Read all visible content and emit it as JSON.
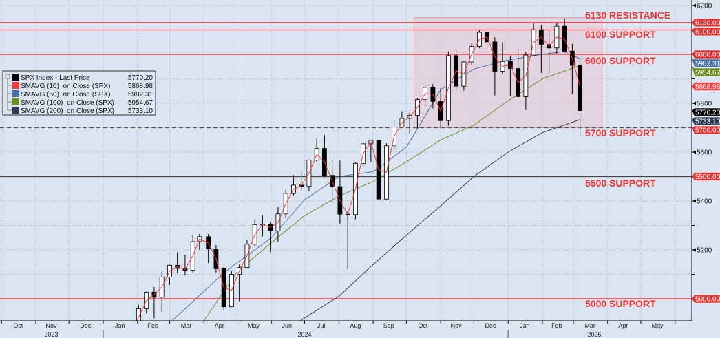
{
  "chart_data": {
    "type": "candlestick",
    "title": "",
    "xlabel": "",
    "ylabel": "",
    "ylim": [
      4907,
      6222
    ],
    "xlim": [
      "2023-10-01",
      "2025-05-31"
    ],
    "grid": true,
    "legend_position": "middle-left",
    "y_ticks": [
      5200,
      5400,
      5600,
      5800,
      6200
    ],
    "month_labels": [
      {
        "label": "Oct",
        "date": "2023-10-16"
      },
      {
        "label": "Nov",
        "date": "2023-11-15"
      },
      {
        "label": "Dec",
        "date": "2023-12-16"
      },
      {
        "label": "Jan",
        "date": "2024-01-16"
      },
      {
        "label": "Feb",
        "date": "2024-02-15"
      },
      {
        "label": "Mar",
        "date": "2024-03-16"
      },
      {
        "label": "Apr",
        "date": "2024-04-15"
      },
      {
        "label": "May",
        "date": "2024-05-16"
      },
      {
        "label": "Jun",
        "date": "2024-06-15"
      },
      {
        "label": "Jul",
        "date": "2024-07-16"
      },
      {
        "label": "Aug",
        "date": "2024-08-16"
      },
      {
        "label": "Sep",
        "date": "2024-09-15"
      },
      {
        "label": "Oct",
        "date": "2024-10-16"
      },
      {
        "label": "Nov",
        "date": "2024-11-15"
      },
      {
        "label": "Dec",
        "date": "2024-12-16"
      },
      {
        "label": "Jan",
        "date": "2025-01-16"
      },
      {
        "label": "Feb",
        "date": "2025-02-14"
      },
      {
        "label": "Mar",
        "date": "2025-03-16"
      },
      {
        "label": "Apr",
        "date": "2025-04-15"
      },
      {
        "label": "May",
        "date": "2025-05-16"
      }
    ],
    "year_labels": [
      {
        "label": "2023",
        "date": "2023-11-15"
      },
      {
        "label": "2024",
        "date": "2024-07-01"
      },
      {
        "label": "2025",
        "date": "2025-03-20"
      }
    ],
    "legend": [
      {
        "name": "SPX Index - Last Price",
        "value": "5770.20",
        "color": "#000000"
      },
      {
        "name": "SMAVG (10)  on Close (SPX)",
        "value": "5868.98",
        "color": "#ee3b3b"
      },
      {
        "name": "SMAVG (50)  on Close (SPX)",
        "value": "5982.31",
        "color": "#4a6fa5"
      },
      {
        "name": "SMAVG (100)  on Close (SPX)",
        "value": "5954.67",
        "color": "#6b8e23"
      },
      {
        "name": "SMAVG (200)  on Close (SPX)",
        "value": "5733.10",
        "color": "#2f3e55"
      }
    ],
    "levels": [
      {
        "value": 6130,
        "label": "6130 RESISTANCE",
        "tag": "6130.00",
        "color": "#ee2222",
        "style": "solid"
      },
      {
        "value": 6100,
        "label": "6100 SUPPORT",
        "tag": "6100.00",
        "color": "#ee2222",
        "style": "solid"
      },
      {
        "value": 6000,
        "label": "6000 SUPPORT",
        "tag": "6000.00",
        "color": "#ee2222",
        "style": "solid"
      },
      {
        "value": 5700,
        "label": "5700 SUPPORT",
        "tag": "5700.00",
        "color": "#555555",
        "style": "dashed"
      },
      {
        "value": 5500,
        "label": "5500 SUPPORT",
        "tag": "5500.00",
        "color": "#444444",
        "style": "solid"
      },
      {
        "value": 5000,
        "label": "5000 SUPPORT",
        "tag": "5000.00",
        "color": "#ee2222",
        "style": "solid"
      }
    ],
    "value_tags": [
      {
        "value": 5982.31,
        "tag": "5982.31",
        "color": "#4a6fa5"
      },
      {
        "value": 5954.67,
        "tag": "5954.67",
        "color": "#6b8e23"
      },
      {
        "value": 5868.98,
        "tag": "5868.98",
        "color": "#ee3b3b"
      },
      {
        "value": 5770.2,
        "tag": "5770.20",
        "color": "#000000"
      },
      {
        "value": 5733.1,
        "tag": "5733.10",
        "color": "#2f3e55"
      }
    ],
    "highlight_zone": {
      "from": "2024-10-08",
      "to": "2025-03-27",
      "low": 5700,
      "high": 6150,
      "color": "#e8c6d4"
    },
    "candles": [
      {
        "d": "2024-01-26",
        "o": 4840,
        "h": 4907,
        "l": 4835,
        "c": 4891,
        "sma10": 4870
      },
      {
        "d": "2024-02-02",
        "o": 4891,
        "h": 4975,
        "l": 4845,
        "c": 4959,
        "sma10": 4925
      },
      {
        "d": "2024-02-09",
        "o": 4959,
        "h": 5030,
        "l": 4940,
        "c": 5027,
        "sma10": 4993
      },
      {
        "d": "2024-02-16",
        "o": 5027,
        "h": 5048,
        "l": 4920,
        "c": 5006,
        "sma10": 5017
      },
      {
        "d": "2024-02-23",
        "o": 5006,
        "h": 5111,
        "l": 4946,
        "c": 5089,
        "sma10": 5048
      },
      {
        "d": "2024-03-01",
        "o": 5089,
        "h": 5140,
        "l": 5057,
        "c": 5137,
        "sma10": 5113
      },
      {
        "d": "2024-03-08",
        "o": 5137,
        "h": 5190,
        "l": 5105,
        "c": 5124,
        "sma10": 5131
      },
      {
        "d": "2024-03-15",
        "o": 5124,
        "h": 5180,
        "l": 5095,
        "c": 5117,
        "sma10": 5120
      },
      {
        "d": "2024-03-22",
        "o": 5117,
        "h": 5262,
        "l": 5105,
        "c": 5234,
        "sma10": 5176
      },
      {
        "d": "2024-03-28",
        "o": 5234,
        "h": 5265,
        "l": 5200,
        "c": 5254,
        "sma10": 5244
      },
      {
        "d": "2024-04-05",
        "o": 5254,
        "h": 5265,
        "l": 5146,
        "c": 5204,
        "sma10": 5229
      },
      {
        "d": "2024-04-12",
        "o": 5204,
        "h": 5220,
        "l": 5108,
        "c": 5123,
        "sma10": 5164
      },
      {
        "d": "2024-04-19",
        "o": 5123,
        "h": 5130,
        "l": 4953,
        "c": 4967,
        "sma10": 5045
      },
      {
        "d": "2024-04-26",
        "o": 4967,
        "h": 5112,
        "l": 4968,
        "c": 5100,
        "sma10": 5034
      },
      {
        "d": "2024-05-03",
        "o": 5100,
        "h": 5140,
        "l": 4990,
        "c": 5128,
        "sma10": 5114
      },
      {
        "d": "2024-05-10",
        "o": 5128,
        "h": 5240,
        "l": 5130,
        "c": 5223,
        "sma10": 5176
      },
      {
        "d": "2024-05-17",
        "o": 5223,
        "h": 5325,
        "l": 5213,
        "c": 5303,
        "sma10": 5263
      },
      {
        "d": "2024-05-24",
        "o": 5303,
        "h": 5342,
        "l": 5255,
        "c": 5305,
        "sma10": 5304
      },
      {
        "d": "2024-05-31",
        "o": 5305,
        "h": 5315,
        "l": 5191,
        "c": 5278,
        "sma10": 5292
      },
      {
        "d": "2024-06-07",
        "o": 5278,
        "h": 5376,
        "l": 5234,
        "c": 5347,
        "sma10": 5312
      },
      {
        "d": "2024-06-14",
        "o": 5347,
        "h": 5447,
        "l": 5331,
        "c": 5431,
        "sma10": 5389
      },
      {
        "d": "2024-06-21",
        "o": 5431,
        "h": 5506,
        "l": 5421,
        "c": 5465,
        "sma10": 5448
      },
      {
        "d": "2024-06-28",
        "o": 5465,
        "h": 5523,
        "l": 5440,
        "c": 5460,
        "sma10": 5463
      },
      {
        "d": "2024-07-05",
        "o": 5460,
        "h": 5570,
        "l": 5440,
        "c": 5567,
        "sma10": 5514
      },
      {
        "d": "2024-07-12",
        "o": 5567,
        "h": 5655,
        "l": 5560,
        "c": 5615,
        "sma10": 5591
      },
      {
        "d": "2024-07-19",
        "o": 5615,
        "h": 5670,
        "l": 5497,
        "c": 5505,
        "sma10": 5560
      },
      {
        "d": "2024-07-26",
        "o": 5505,
        "h": 5566,
        "l": 5390,
        "c": 5459,
        "sma10": 5482
      },
      {
        "d": "2024-08-02",
        "o": 5459,
        "h": 5566,
        "l": 5306,
        "c": 5346,
        "sma10": 5402
      },
      {
        "d": "2024-08-09",
        "o": 5346,
        "h": 5360,
        "l": 5120,
        "c": 5344,
        "sma10": 5345
      },
      {
        "d": "2024-08-16",
        "o": 5344,
        "h": 5560,
        "l": 5325,
        "c": 5554,
        "sma10": 5449
      },
      {
        "d": "2024-08-23",
        "o": 5554,
        "h": 5643,
        "l": 5540,
        "c": 5634,
        "sma10": 5594
      },
      {
        "d": "2024-08-30",
        "o": 5634,
        "h": 5651,
        "l": 5560,
        "c": 5648,
        "sma10": 5641
      },
      {
        "d": "2024-09-06",
        "o": 5648,
        "h": 5650,
        "l": 5402,
        "c": 5408,
        "sma10": 5528
      },
      {
        "d": "2024-09-13",
        "o": 5408,
        "h": 5636,
        "l": 5406,
        "c": 5626,
        "sma10": 5517
      },
      {
        "d": "2024-09-20",
        "o": 5626,
        "h": 5733,
        "l": 5615,
        "c": 5703,
        "sma10": 5665
      },
      {
        "d": "2024-09-27",
        "o": 5703,
        "h": 5767,
        "l": 5700,
        "c": 5738,
        "sma10": 5720
      },
      {
        "d": "2024-10-04",
        "o": 5738,
        "h": 5765,
        "l": 5674,
        "c": 5751,
        "sma10": 5745
      },
      {
        "d": "2024-10-11",
        "o": 5751,
        "h": 5822,
        "l": 5696,
        "c": 5815,
        "sma10": 5783
      },
      {
        "d": "2024-10-18",
        "o": 5815,
        "h": 5878,
        "l": 5784,
        "c": 5865,
        "sma10": 5840
      },
      {
        "d": "2024-10-25",
        "o": 5865,
        "h": 5878,
        "l": 5779,
        "c": 5808,
        "sma10": 5837
      },
      {
        "d": "2024-11-01",
        "o": 5808,
        "h": 5862,
        "l": 5697,
        "c": 5729,
        "sma10": 5769
      },
      {
        "d": "2024-11-08",
        "o": 5729,
        "h": 6012,
        "l": 5707,
        "c": 5995,
        "sma10": 5862
      },
      {
        "d": "2024-11-15",
        "o": 5995,
        "h": 6017,
        "l": 5853,
        "c": 5870,
        "sma10": 5933
      },
      {
        "d": "2024-11-22",
        "o": 5870,
        "h": 5972,
        "l": 5853,
        "c": 5969,
        "sma10": 5920
      },
      {
        "d": "2024-11-29",
        "o": 5969,
        "h": 6044,
        "l": 5957,
        "c": 6032,
        "sma10": 6000
      },
      {
        "d": "2024-12-06",
        "o": 6032,
        "h": 6099,
        "l": 6025,
        "c": 6090,
        "sma10": 6061
      },
      {
        "d": "2024-12-13",
        "o": 6090,
        "h": 6095,
        "l": 6026,
        "c": 6051,
        "sma10": 6070
      },
      {
        "d": "2024-12-20",
        "o": 6051,
        "h": 6070,
        "l": 5832,
        "c": 5931,
        "sma10": 5991
      },
      {
        "d": "2024-12-27",
        "o": 5931,
        "h": 6050,
        "l": 5920,
        "c": 5971,
        "sma10": 5951
      },
      {
        "d": "2025-01-03",
        "o": 5971,
        "h": 5995,
        "l": 5830,
        "c": 5942,
        "sma10": 5957
      },
      {
        "d": "2025-01-10",
        "o": 5942,
        "h": 6021,
        "l": 5820,
        "c": 5827,
        "sma10": 5885
      },
      {
        "d": "2025-01-17",
        "o": 5827,
        "h": 6011,
        "l": 5773,
        "c": 5997,
        "sma10": 5912
      },
      {
        "d": "2025-01-24",
        "o": 5997,
        "h": 6128,
        "l": 6000,
        "c": 6101,
        "sma10": 6049
      },
      {
        "d": "2025-01-31",
        "o": 6101,
        "h": 6120,
        "l": 5924,
        "c": 6041,
        "sma10": 6071
      },
      {
        "d": "2025-02-07",
        "o": 6041,
        "h": 6101,
        "l": 5923,
        "c": 6026,
        "sma10": 6034
      },
      {
        "d": "2025-02-14",
        "o": 6026,
        "h": 6128,
        "l": 6003,
        "c": 6115,
        "sma10": 6070
      },
      {
        "d": "2025-02-21",
        "o": 6115,
        "h": 6147,
        "l": 6008,
        "c": 6013,
        "sma10": 6064
      },
      {
        "d": "2025-02-28",
        "o": 6013,
        "h": 6043,
        "l": 5837,
        "c": 5955,
        "sma10": 5984
      },
      {
        "d": "2025-03-07",
        "o": 5955,
        "h": 5986,
        "l": 5666,
        "c": 5770.2,
        "sma10": 5868.98
      }
    ],
    "sma50": [
      {
        "d": "2024-03-01",
        "v": 4900
      },
      {
        "d": "2024-04-20",
        "v": 5110
      },
      {
        "d": "2024-06-01",
        "v": 5250
      },
      {
        "d": "2024-07-01",
        "v": 5405
      },
      {
        "d": "2024-08-01",
        "v": 5500
      },
      {
        "d": "2024-09-01",
        "v": 5520
      },
      {
        "d": "2024-10-01",
        "v": 5620
      },
      {
        "d": "2024-11-01",
        "v": 5855
      },
      {
        "d": "2024-12-01",
        "v": 5940
      },
      {
        "d": "2025-01-01",
        "v": 5977
      },
      {
        "d": "2025-02-01",
        "v": 6000
      },
      {
        "d": "2025-02-20",
        "v": 6011
      },
      {
        "d": "2025-03-07",
        "v": 5982.31
      }
    ],
    "sma100": [
      {
        "d": "2024-04-01",
        "v": 4910
      },
      {
        "d": "2024-05-01",
        "v": 5110
      },
      {
        "d": "2024-06-01",
        "v": 5230
      },
      {
        "d": "2024-07-01",
        "v": 5340
      },
      {
        "d": "2024-08-01",
        "v": 5420
      },
      {
        "d": "2024-09-01",
        "v": 5480
      },
      {
        "d": "2024-10-01",
        "v": 5560
      },
      {
        "d": "2024-11-01",
        "v": 5650
      },
      {
        "d": "2024-12-01",
        "v": 5710
      },
      {
        "d": "2025-01-01",
        "v": 5810
      },
      {
        "d": "2025-02-01",
        "v": 5900
      },
      {
        "d": "2025-03-07",
        "v": 5954.67
      }
    ],
    "sma200": [
      {
        "d": "2024-06-20",
        "v": 4890
      },
      {
        "d": "2024-08-01",
        "v": 5010
      },
      {
        "d": "2024-09-01",
        "v": 5140
      },
      {
        "d": "2024-10-01",
        "v": 5260
      },
      {
        "d": "2024-11-01",
        "v": 5380
      },
      {
        "d": "2024-12-01",
        "v": 5500
      },
      {
        "d": "2025-01-01",
        "v": 5600
      },
      {
        "d": "2025-02-01",
        "v": 5680
      },
      {
        "d": "2025-03-07",
        "v": 5733.1
      }
    ]
  }
}
